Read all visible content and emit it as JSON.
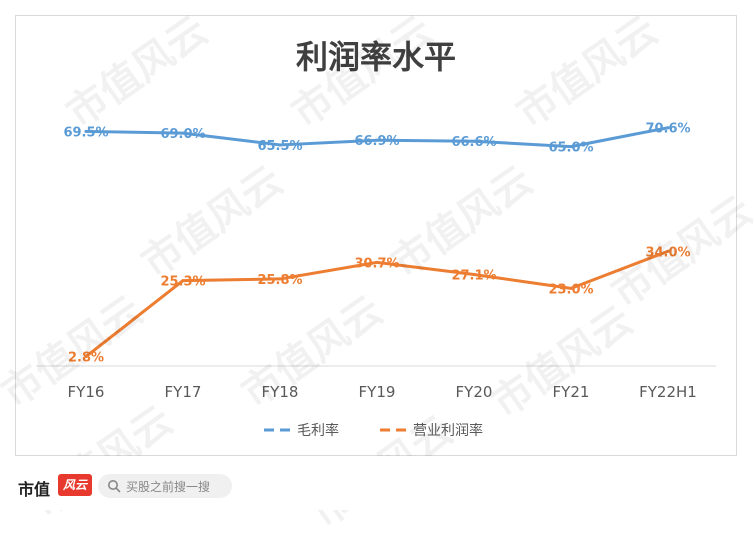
{
  "watermark_text": "市值风云",
  "footer": {
    "brand": "市值",
    "brand_logo": "风云",
    "search_placeholder": "买股之前搜一搜",
    "search_icon": "search-icon"
  },
  "chart_data": {
    "type": "line",
    "title": "利润率水平",
    "xlabel": "",
    "ylabel": "",
    "categories": [
      "FY16",
      "FY17",
      "FY18",
      "FY19",
      "FY20",
      "FY21",
      "FY22H1"
    ],
    "series": [
      {
        "name": "毛利率",
        "color": "#5b9bd5",
        "values": [
          69.5,
          69.0,
          65.5,
          66.9,
          66.6,
          65.0,
          70.6
        ],
        "labels": [
          "69.5%",
          "69.0%",
          "65.5%",
          "66.9%",
          "66.6%",
          "65.0%",
          "70.6%"
        ]
      },
      {
        "name": "营业利润率",
        "color": "#ed7d31",
        "values": [
          2.8,
          25.3,
          25.8,
          30.7,
          27.1,
          23.0,
          34.0
        ],
        "labels": [
          "2.8%",
          "25.3%",
          "25.8%",
          "30.7%",
          "27.1%",
          "23.0%",
          "34.0%"
        ]
      }
    ],
    "ylim": [
      0,
      80
    ],
    "grid": false,
    "legend": "bottom"
  }
}
